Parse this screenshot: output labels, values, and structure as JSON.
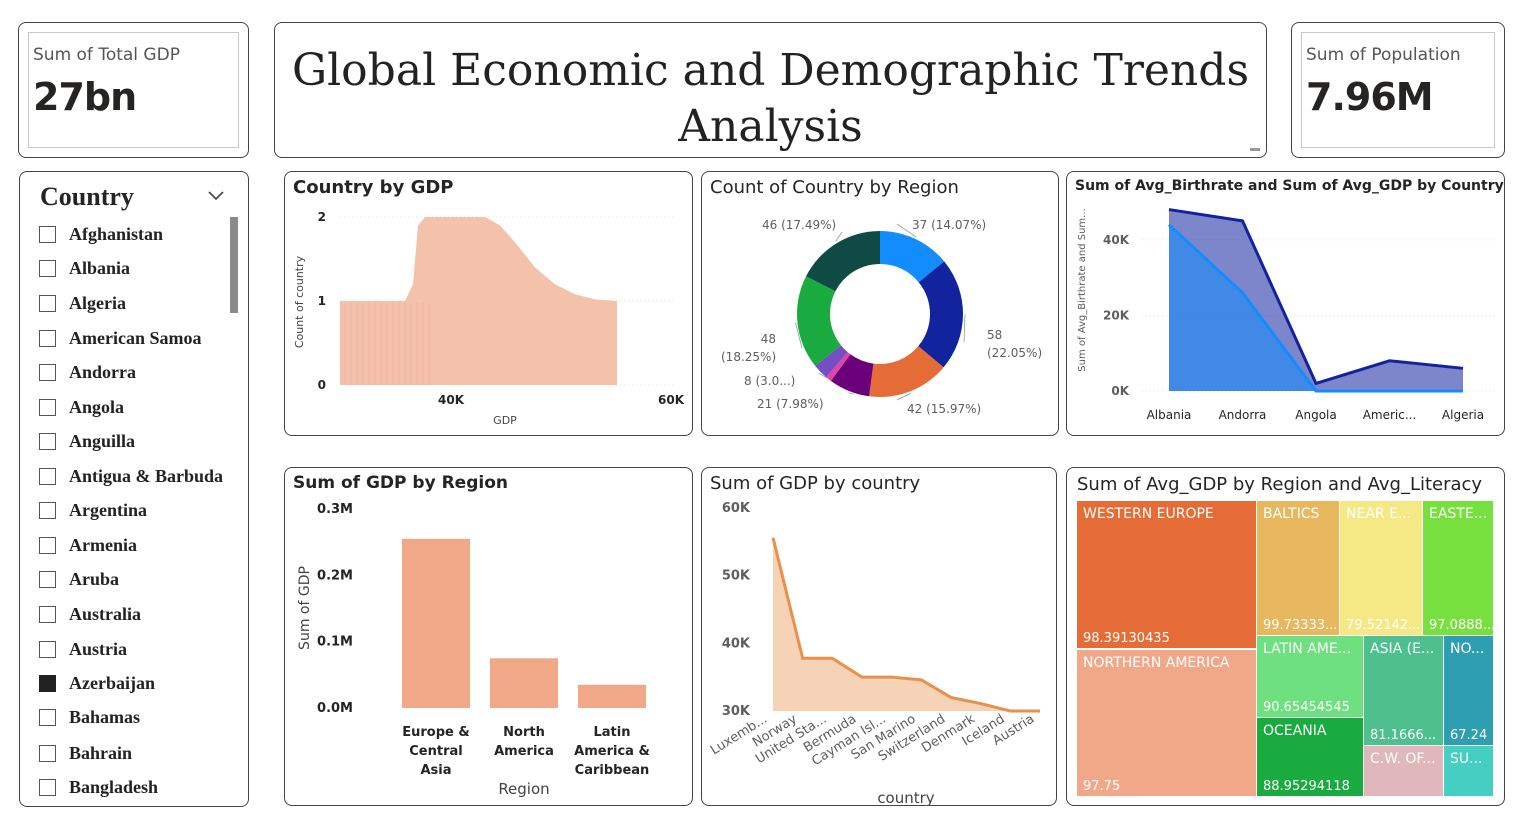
{
  "kpi_gdp": {
    "label": "Sum of Total GDP",
    "value": "27bn"
  },
  "title": {
    "line1": "Global Economic and Demographic Trends",
    "line2": "Analysis"
  },
  "kpi_pop": {
    "label": "Sum of Population",
    "value": "7.96M"
  },
  "slicer": {
    "title": "Country",
    "items": [
      {
        "label": "Afghanistan",
        "checked": false
      },
      {
        "label": "Albania",
        "checked": false
      },
      {
        "label": "Algeria",
        "checked": false
      },
      {
        "label": "American Samoa",
        "checked": false
      },
      {
        "label": "Andorra",
        "checked": false
      },
      {
        "label": "Angola",
        "checked": false
      },
      {
        "label": "Anguilla",
        "checked": false
      },
      {
        "label": "Antigua & Barbuda",
        "checked": false
      },
      {
        "label": "Argentina",
        "checked": false
      },
      {
        "label": "Armenia",
        "checked": false
      },
      {
        "label": "Aruba",
        "checked": false
      },
      {
        "label": "Australia",
        "checked": false
      },
      {
        "label": "Austria",
        "checked": false
      },
      {
        "label": "Azerbaijan",
        "checked": true
      },
      {
        "label": "Bahamas",
        "checked": false
      },
      {
        "label": "Bahrain",
        "checked": false
      },
      {
        "label": "Bangladesh",
        "checked": false
      }
    ]
  },
  "chart_data": [
    {
      "type": "area",
      "title": "Country by GDP",
      "xlabel": "GDP",
      "ylabel": "Count of country",
      "x_ticks": [
        "40K",
        "60K"
      ],
      "y_ticks": [
        "0",
        "1",
        "2"
      ],
      "ylim": [
        0,
        2
      ],
      "color": "#f4c2ab"
    },
    {
      "type": "pie",
      "title": "Count of Country by Region",
      "slices": [
        {
          "value": 37,
          "label": "37 (14.07%)",
          "color": "#118dff"
        },
        {
          "value": 58,
          "label": "58",
          "label2": "(22.05%)",
          "color": "#12239e"
        },
        {
          "value": 42,
          "label": "42 (15.97%)",
          "color": "#e66c37"
        },
        {
          "value": 21,
          "label": "21 (7.98%)",
          "color": "#6b007b"
        },
        {
          "value": 3,
          "label": "",
          "color": "#e044a7"
        },
        {
          "value": 8,
          "label": "8 (3.0...)",
          "color": "#744ec2"
        },
        {
          "value": 48,
          "label": "48",
          "label2": "(18.25%)",
          "color": "#1aab40"
        },
        {
          "value": 46,
          "label": "46 (17.49%)",
          "color": "#0f4a44"
        }
      ]
    },
    {
      "type": "area",
      "title": "Sum of Avg_Birthrate and Sum of Avg_GDP by Country",
      "ylabel": "Sum of Avg_Birthrate and Sum...",
      "categories": [
        "Albania",
        "Andorra",
        "Angola",
        "Americ...",
        "Algeria"
      ],
      "y_ticks": [
        "0K",
        "20K",
        "40K"
      ],
      "ylim": [
        0,
        50000
      ],
      "series": [
        {
          "values": [
            48000,
            45000,
            2000,
            8000,
            6000
          ],
          "color": "#12239e"
        },
        {
          "values": [
            44000,
            26000,
            0,
            0,
            0
          ],
          "color": "#118dff"
        }
      ]
    },
    {
      "type": "bar",
      "title": "Sum of GDP by Region",
      "xlabel": "Region",
      "ylabel": "Sum of GDP",
      "categories": [
        [
          "Europe &",
          "Central",
          "Asia"
        ],
        [
          "North",
          "America"
        ],
        [
          "Latin",
          "America &",
          "Caribbean"
        ]
      ],
      "values": [
        255000,
        75000,
        35000
      ],
      "y_ticks": [
        "0.0M",
        "0.1M",
        "0.2M",
        "0.3M"
      ],
      "ylim": [
        0,
        300000
      ],
      "color": "#f0a888"
    },
    {
      "type": "area",
      "title": "Sum of GDP by country",
      "xlabel": "country",
      "categories": [
        "Luxemb...",
        "Norway",
        "United Sta...",
        "Bermuda",
        "Cayman Isl...",
        "San Marino",
        "Switzerland",
        "Denmark",
        "Iceland",
        "Austria"
      ],
      "values": [
        55600,
        37800,
        37800,
        35000,
        35000,
        34600,
        32000,
        31100,
        30000,
        30000
      ],
      "y_ticks": [
        "30K",
        "40K",
        "50K",
        "60K"
      ],
      "ylim": [
        30000,
        60000
      ],
      "color": "#e8914a"
    },
    {
      "type": "heatmap",
      "title": "Sum of Avg_GDP by Region and Avg_Literacy",
      "tiles": [
        {
          "label": "WESTERN EUROPE",
          "value": "98.39130435",
          "color": "#e66c37"
        },
        {
          "label": "NORTHERN AMERICA",
          "value": "97.75",
          "color": "#f0a888"
        },
        {
          "label": "BALTICS",
          "value": "99.73333...",
          "color": "#e8b85f"
        },
        {
          "label": "NEAR E...",
          "value": "79.52142...",
          "color": "#f5e986"
        },
        {
          "label": "EASTE...",
          "value": "97.0888...",
          "color": "#77e03e"
        },
        {
          "label": "LATIN AME...",
          "value": "90.65454545",
          "color": "#6ee07f"
        },
        {
          "label": "OCEANIA",
          "value": "88.95294118",
          "color": "#1aab40"
        },
        {
          "label": "ASIA (E...",
          "value": "81.1666...",
          "color": "#4dc08e"
        },
        {
          "label": "NO...",
          "value": "67.24",
          "color": "#2d9fb0"
        },
        {
          "label": "C.W. OF...",
          "value": "",
          "color": "#e0b8bc"
        },
        {
          "label": "SU...",
          "value": "",
          "color": "#45cec2"
        }
      ]
    }
  ]
}
